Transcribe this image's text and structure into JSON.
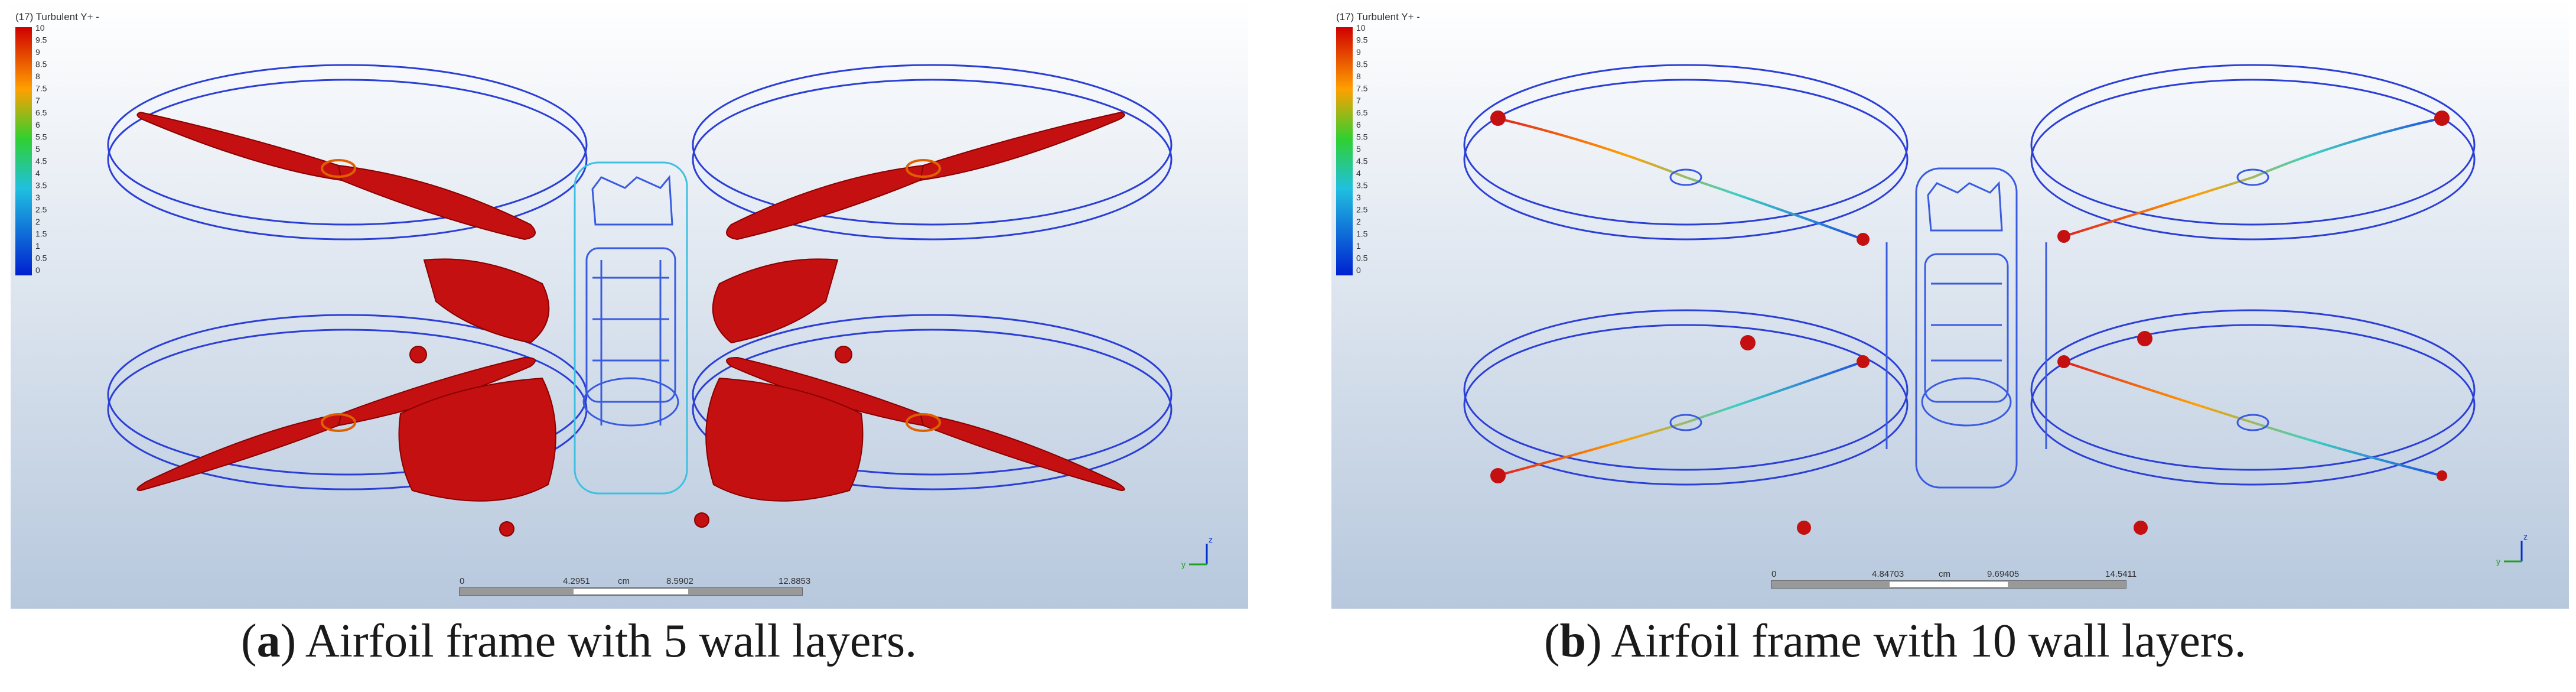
{
  "panels": [
    {
      "id": "a",
      "legend_title": "(17) Turbulent Y+ -",
      "legend_ticks": [
        "10",
        "9.5",
        "9",
        "8.5",
        "8",
        "7.5",
        "7",
        "6.5",
        "6",
        "5.5",
        "5",
        "4.5",
        "4",
        "3.5",
        "3",
        "2.5",
        "2",
        "1.5",
        "1",
        "0.5",
        "0"
      ],
      "scale_ticks": [
        "0",
        "4.2951",
        "8.5902",
        "12.8853"
      ],
      "scale_unit": "cm",
      "axis_labels": {
        "y": "y",
        "z": "z"
      },
      "caption_letter": "a",
      "caption_open": "(",
      "caption_close": ")",
      "caption_text": " Airfoil frame with 5 wall layers."
    },
    {
      "id": "b",
      "legend_title": "(17) Turbulent Y+ -",
      "legend_ticks": [
        "10",
        "9.5",
        "9",
        "8.5",
        "8",
        "7.5",
        "7",
        "6.5",
        "6",
        "5.5",
        "5",
        "4.5",
        "4",
        "3.5",
        "3",
        "2.5",
        "2",
        "1.5",
        "1",
        "0.5",
        "0"
      ],
      "scale_ticks": [
        "0",
        "4.84703",
        "9.69405",
        "14.5411"
      ],
      "scale_unit": "cm",
      "axis_labels": {
        "y": "y",
        "z": "z"
      },
      "caption_letter": "b",
      "caption_open": "(",
      "caption_close": ")",
      "caption_text": " Airfoil frame with 10 wall layers."
    }
  ],
  "colors": {
    "bg_top": "#ffffff",
    "bg_bottom": "#b7c8dd",
    "outline": "#2b3fd6",
    "blade": "#c41010",
    "frame_cyan": "#40c0e0"
  }
}
